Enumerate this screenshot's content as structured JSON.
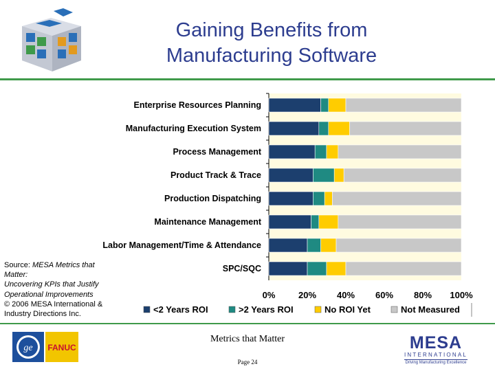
{
  "title": {
    "line1": "Gaining Benefits from",
    "line2": "Manufacturing Software"
  },
  "source": {
    "line1": "Source: ",
    "line1_italic": "MESA Metrics that Matter:",
    "line2_italic": "Uncovering KPIs that Justify Operational Improvements",
    "line3": "© 2006 MESA International & Industry Directions Inc."
  },
  "footer": {
    "center": "Metrics that Matter",
    "page": "Page 24",
    "mesa_main": "MESA",
    "mesa_sub": "INTERNATIONAL",
    "mesa_tagline": "Driving Manufacturing Excellence",
    "ge_text": "FANUC"
  },
  "colors": {
    "lt2": "#1c3f6e",
    "gt2": "#1f8a82",
    "noroi": "#ffcc00",
    "notmeasured": "#c8c8c8",
    "plot_bg": "#fffbe0",
    "accent": "#3f9a4a",
    "title": "#2d3d8f"
  },
  "chart_data": {
    "type": "bar",
    "orientation": "horizontal",
    "stacked": true,
    "categories": [
      "Enterprise Resources Planning",
      "Manufacturing Execution System",
      "Process Management",
      "Product Track & Trace",
      "Production Dispatching",
      "Maintenance Management",
      "Labor Management/Time & Attendance",
      "SPC/SQC"
    ],
    "series": [
      {
        "name": "<2 Years ROI",
        "values": [
          27,
          26,
          24,
          23,
          23,
          22,
          20,
          20
        ]
      },
      {
        "name": ">2 Years ROI",
        "values": [
          4,
          5,
          6,
          11,
          6,
          4,
          7,
          10
        ]
      },
      {
        "name": "No ROI Yet",
        "values": [
          9,
          11,
          6,
          5,
          4,
          10,
          8,
          10
        ]
      },
      {
        "name": "Not Measured",
        "values": [
          60,
          58,
          64,
          61,
          67,
          64,
          65,
          60
        ]
      }
    ],
    "xlim": [
      0,
      100
    ],
    "xticks": [
      "0%",
      "20%",
      "40%",
      "60%",
      "80%",
      "100%"
    ],
    "legend_position": "bottom",
    "grid": false
  }
}
